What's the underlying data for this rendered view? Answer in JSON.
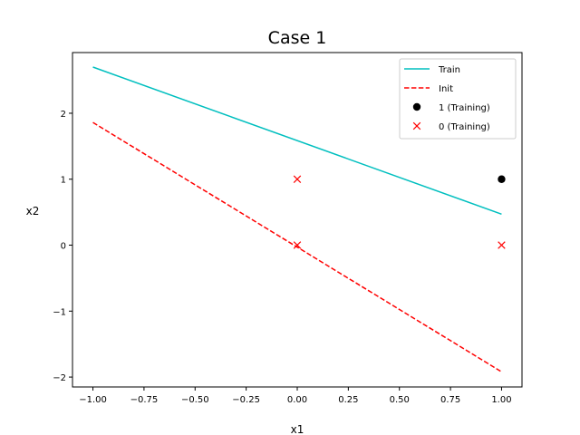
{
  "chart_data": {
    "type": "line",
    "title": "Case 1",
    "xlabel": "x1",
    "ylabel": "x2",
    "xlim": [
      -1.1,
      1.1
    ],
    "ylim": [
      -2.15,
      2.92
    ],
    "xticks": [
      -1.0,
      -0.75,
      -0.5,
      -0.25,
      0.0,
      0.25,
      0.5,
      0.75,
      1.0
    ],
    "xtick_labels": [
      "−1.00",
      "−0.75",
      "−0.50",
      "−0.25",
      "0.00",
      "0.25",
      "0.50",
      "0.75",
      "1.00"
    ],
    "yticks": [
      -2,
      -1,
      0,
      1,
      2
    ],
    "ytick_labels": [
      "−2",
      "−1",
      "0",
      "1",
      "2"
    ],
    "grid": false,
    "legend_position": "top-right",
    "series": [
      {
        "name": "Train",
        "kind": "line",
        "style": "solid",
        "color": "#00bfbf",
        "x": [
          -1.0,
          1.0
        ],
        "y": [
          2.7,
          0.47
        ]
      },
      {
        "name": "Init",
        "kind": "line",
        "style": "dashed",
        "color": "#ff0000",
        "x": [
          -1.0,
          1.0
        ],
        "y": [
          1.86,
          -1.92
        ]
      },
      {
        "name": "1 (Training)",
        "kind": "scatter",
        "marker": "circle",
        "color": "#000000",
        "x": [
          1.0
        ],
        "y": [
          1.0
        ]
      },
      {
        "name": "0 (Training)",
        "kind": "scatter",
        "marker": "x",
        "color": "#ff0000",
        "x": [
          0.0,
          0.0,
          1.0
        ],
        "y": [
          1.0,
          0.0,
          0.0
        ]
      }
    ]
  }
}
